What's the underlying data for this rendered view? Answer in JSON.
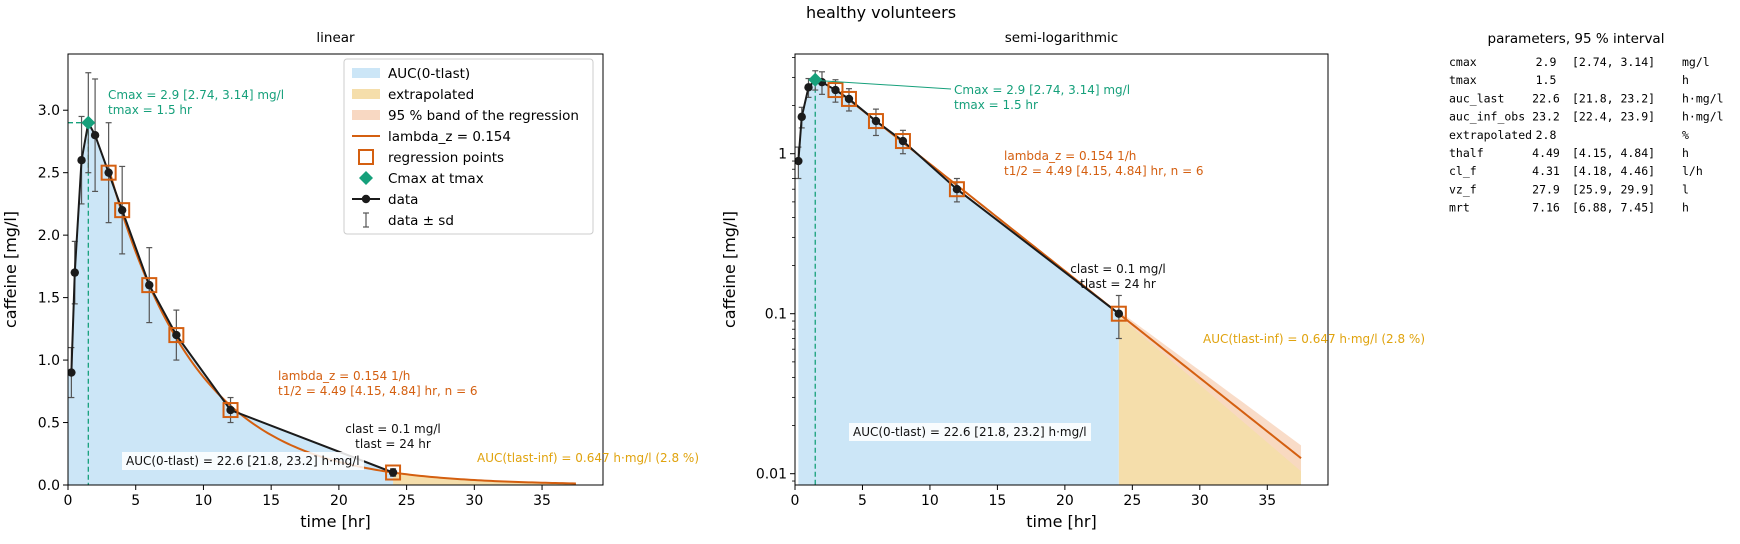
{
  "figure": {
    "suptitle": "healthy volunteers"
  },
  "colors": {
    "auc_fill": "#cce6f7",
    "extrap_fill": "#f5deab",
    "band_fill": "#f8d8c2",
    "fit_line": "#d45f10",
    "reg_marker": "#d45f10",
    "cmax_marker": "#16a07b",
    "data": "#1b1b1b",
    "cmax_text": "#16a07b",
    "lambda_text": "#d45f10",
    "extrap_text": "#e0a30e",
    "dashed": "#16a07b"
  },
  "chart_data": [
    {
      "type": "line",
      "title": "linear",
      "xlabel": "time [hr]",
      "ylabel": "caffeine [mg/l]",
      "xlim": [
        0,
        39.5
      ],
      "ylim": [
        0,
        3.45
      ],
      "xticks": [
        0,
        5,
        10,
        15,
        20,
        25,
        30,
        35
      ],
      "xtick_labels": [
        "0",
        "5",
        "10",
        "15",
        "20",
        "25",
        "30",
        "35"
      ],
      "yticks": [
        0,
        0.5,
        1,
        1.5,
        2,
        2.5,
        3
      ],
      "ytick_labels": [
        "0.0",
        "0.5",
        "1.0",
        "1.5",
        "2.0",
        "2.5",
        "3.0"
      ],
      "yscale": "linear",
      "x": [
        0.25,
        0.5,
        1,
        1.5,
        2,
        3,
        4,
        6,
        8,
        12,
        24
      ],
      "y": [
        0.9,
        1.7,
        2.6,
        2.9,
        2.8,
        2.5,
        2.2,
        1.6,
        1.2,
        0.6,
        0.1
      ],
      "sd": [
        0.2,
        0.25,
        0.35,
        0.4,
        0.45,
        0.4,
        0.35,
        0.3,
        0.2,
        0.1,
        0.03
      ],
      "tmax": 1.5,
      "cmax": 2.9,
      "regression_points_x": [
        3,
        4,
        6,
        8,
        12,
        24
      ],
      "lambda_z": 0.154,
      "tlast": 24,
      "fit_end": 37.5,
      "legend": {
        "placement": "upper right",
        "entries": [
          "AUC(0-tlast)",
          "extrapolated",
          "95 % band of the regression",
          "lambda_z = 0.154",
          "regression points",
          "Cmax at tmax",
          "data",
          "data ± sd"
        ]
      },
      "annotations": {
        "cmax": [
          "Cmax = 2.9 [2.74, 3.14] mg/l",
          "tmax = 1.5 hr"
        ],
        "lambda": [
          "lambda_z = 0.154 1/h",
          "t1/2 = 4.49 [4.15, 4.84] hr, n = 6"
        ],
        "clast": [
          "clast = 0.1 mg/l",
          "tlast = 24 hr"
        ],
        "auc": "AUC(0-tlast) = 22.6 [21.8, 23.2] h·mg/l",
        "extrap": "AUC(tlast-inf) = 0.647 h·mg/l (2.8 %)"
      }
    },
    {
      "type": "line",
      "title": "semi-logarithmic",
      "xlabel": "time [hr]",
      "ylabel": "caffeine [mg/l]",
      "xlim": [
        0,
        39.5
      ],
      "ylim": [
        0.0085,
        4.2
      ],
      "xticks": [
        0,
        5,
        10,
        15,
        20,
        25,
        30,
        35
      ],
      "xtick_labels": [
        "0",
        "5",
        "10",
        "15",
        "20",
        "25",
        "30",
        "35"
      ],
      "yticks": [
        0.01,
        0.1,
        1
      ],
      "ytick_labels": [
        "0.01",
        "0.1",
        "1"
      ],
      "yscale": "log",
      "x": [
        0.25,
        0.5,
        1,
        1.5,
        2,
        3,
        4,
        6,
        8,
        12,
        24
      ],
      "y": [
        0.9,
        1.7,
        2.6,
        2.9,
        2.8,
        2.5,
        2.2,
        1.6,
        1.2,
        0.6,
        0.1
      ],
      "sd": [
        0.2,
        0.25,
        0.35,
        0.4,
        0.45,
        0.4,
        0.35,
        0.3,
        0.2,
        0.1,
        0.03
      ],
      "tmax": 1.5,
      "cmax": 2.9,
      "regression_points_x": [
        3,
        4,
        6,
        8,
        12,
        24
      ],
      "lambda_z": 0.154,
      "tlast": 24,
      "fit_end": 37.5,
      "annotations": {
        "cmax": [
          "Cmax = 2.9 [2.74, 3.14] mg/l",
          "tmax = 1.5 hr"
        ],
        "lambda": [
          "lambda_z = 0.154 1/h",
          "t1/2 = 4.49 [4.15, 4.84] hr, n = 6"
        ],
        "clast": [
          "clast = 0.1 mg/l",
          "tlast = 24 hr"
        ],
        "auc": "AUC(0-tlast) = 22.6 [21.8, 23.2] h·mg/l",
        "extrap": "AUC(tlast-inf) = 0.647 h·mg/l (2.8 %)"
      }
    }
  ],
  "parameters": {
    "title": "parameters, 95 % interval",
    "rows": [
      {
        "name": "cmax",
        "value": "2.9",
        "interval": "[2.74, 3.14]",
        "unit": "mg/l"
      },
      {
        "name": "tmax",
        "value": "1.5",
        "interval": "",
        "unit": "h"
      },
      {
        "name": "auc_last",
        "value": "22.6",
        "interval": "[21.8, 23.2]",
        "unit": "h·mg/l"
      },
      {
        "name": "auc_inf_obs",
        "value": "23.2",
        "interval": "[22.4, 23.9]",
        "unit": "h·mg/l"
      },
      {
        "name": "extrapolated",
        "value": "2.8",
        "interval": "",
        "unit": "%"
      },
      {
        "name": "thalf",
        "value": "4.49",
        "interval": "[4.15, 4.84]",
        "unit": "h"
      },
      {
        "name": "cl_f",
        "value": "4.31",
        "interval": "[4.18, 4.46]",
        "unit": "l/h"
      },
      {
        "name": "vz_f",
        "value": "27.9",
        "interval": "[25.9, 29.9]",
        "unit": "l"
      },
      {
        "name": "mrt",
        "value": "7.16",
        "interval": "[6.88, 7.45]",
        "unit": "h"
      }
    ]
  }
}
